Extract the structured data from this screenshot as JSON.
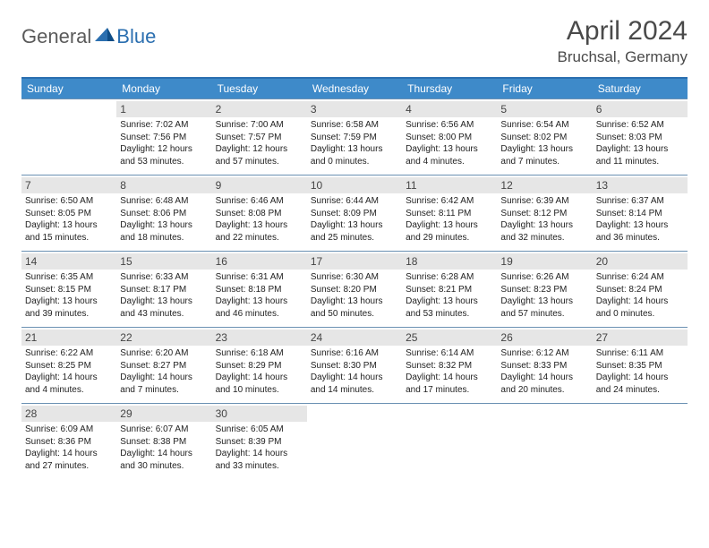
{
  "logo": {
    "text1": "General",
    "text2": "Blue"
  },
  "title": "April 2024",
  "location": "Bruchsal, Germany",
  "colors": {
    "header_bar": "#3e8ac9",
    "top_border": "#2b6fb0",
    "row_border": "#6a90b2",
    "daynum_bg": "#e6e6e6",
    "logo_gray": "#5a5a5a",
    "logo_blue": "#2b6fb0"
  },
  "weekdays": [
    "Sunday",
    "Monday",
    "Tuesday",
    "Wednesday",
    "Thursday",
    "Friday",
    "Saturday"
  ],
  "weeks": [
    [
      {
        "day": "",
        "sunrise": "",
        "sunset": "",
        "daylight1": "",
        "daylight2": ""
      },
      {
        "day": "1",
        "sunrise": "Sunrise: 7:02 AM",
        "sunset": "Sunset: 7:56 PM",
        "daylight1": "Daylight: 12 hours",
        "daylight2": "and 53 minutes."
      },
      {
        "day": "2",
        "sunrise": "Sunrise: 7:00 AM",
        "sunset": "Sunset: 7:57 PM",
        "daylight1": "Daylight: 12 hours",
        "daylight2": "and 57 minutes."
      },
      {
        "day": "3",
        "sunrise": "Sunrise: 6:58 AM",
        "sunset": "Sunset: 7:59 PM",
        "daylight1": "Daylight: 13 hours",
        "daylight2": "and 0 minutes."
      },
      {
        "day": "4",
        "sunrise": "Sunrise: 6:56 AM",
        "sunset": "Sunset: 8:00 PM",
        "daylight1": "Daylight: 13 hours",
        "daylight2": "and 4 minutes."
      },
      {
        "day": "5",
        "sunrise": "Sunrise: 6:54 AM",
        "sunset": "Sunset: 8:02 PM",
        "daylight1": "Daylight: 13 hours",
        "daylight2": "and 7 minutes."
      },
      {
        "day": "6",
        "sunrise": "Sunrise: 6:52 AM",
        "sunset": "Sunset: 8:03 PM",
        "daylight1": "Daylight: 13 hours",
        "daylight2": "and 11 minutes."
      }
    ],
    [
      {
        "day": "7",
        "sunrise": "Sunrise: 6:50 AM",
        "sunset": "Sunset: 8:05 PM",
        "daylight1": "Daylight: 13 hours",
        "daylight2": "and 15 minutes."
      },
      {
        "day": "8",
        "sunrise": "Sunrise: 6:48 AM",
        "sunset": "Sunset: 8:06 PM",
        "daylight1": "Daylight: 13 hours",
        "daylight2": "and 18 minutes."
      },
      {
        "day": "9",
        "sunrise": "Sunrise: 6:46 AM",
        "sunset": "Sunset: 8:08 PM",
        "daylight1": "Daylight: 13 hours",
        "daylight2": "and 22 minutes."
      },
      {
        "day": "10",
        "sunrise": "Sunrise: 6:44 AM",
        "sunset": "Sunset: 8:09 PM",
        "daylight1": "Daylight: 13 hours",
        "daylight2": "and 25 minutes."
      },
      {
        "day": "11",
        "sunrise": "Sunrise: 6:42 AM",
        "sunset": "Sunset: 8:11 PM",
        "daylight1": "Daylight: 13 hours",
        "daylight2": "and 29 minutes."
      },
      {
        "day": "12",
        "sunrise": "Sunrise: 6:39 AM",
        "sunset": "Sunset: 8:12 PM",
        "daylight1": "Daylight: 13 hours",
        "daylight2": "and 32 minutes."
      },
      {
        "day": "13",
        "sunrise": "Sunrise: 6:37 AM",
        "sunset": "Sunset: 8:14 PM",
        "daylight1": "Daylight: 13 hours",
        "daylight2": "and 36 minutes."
      }
    ],
    [
      {
        "day": "14",
        "sunrise": "Sunrise: 6:35 AM",
        "sunset": "Sunset: 8:15 PM",
        "daylight1": "Daylight: 13 hours",
        "daylight2": "and 39 minutes."
      },
      {
        "day": "15",
        "sunrise": "Sunrise: 6:33 AM",
        "sunset": "Sunset: 8:17 PM",
        "daylight1": "Daylight: 13 hours",
        "daylight2": "and 43 minutes."
      },
      {
        "day": "16",
        "sunrise": "Sunrise: 6:31 AM",
        "sunset": "Sunset: 8:18 PM",
        "daylight1": "Daylight: 13 hours",
        "daylight2": "and 46 minutes."
      },
      {
        "day": "17",
        "sunrise": "Sunrise: 6:30 AM",
        "sunset": "Sunset: 8:20 PM",
        "daylight1": "Daylight: 13 hours",
        "daylight2": "and 50 minutes."
      },
      {
        "day": "18",
        "sunrise": "Sunrise: 6:28 AM",
        "sunset": "Sunset: 8:21 PM",
        "daylight1": "Daylight: 13 hours",
        "daylight2": "and 53 minutes."
      },
      {
        "day": "19",
        "sunrise": "Sunrise: 6:26 AM",
        "sunset": "Sunset: 8:23 PM",
        "daylight1": "Daylight: 13 hours",
        "daylight2": "and 57 minutes."
      },
      {
        "day": "20",
        "sunrise": "Sunrise: 6:24 AM",
        "sunset": "Sunset: 8:24 PM",
        "daylight1": "Daylight: 14 hours",
        "daylight2": "and 0 minutes."
      }
    ],
    [
      {
        "day": "21",
        "sunrise": "Sunrise: 6:22 AM",
        "sunset": "Sunset: 8:25 PM",
        "daylight1": "Daylight: 14 hours",
        "daylight2": "and 4 minutes."
      },
      {
        "day": "22",
        "sunrise": "Sunrise: 6:20 AM",
        "sunset": "Sunset: 8:27 PM",
        "daylight1": "Daylight: 14 hours",
        "daylight2": "and 7 minutes."
      },
      {
        "day": "23",
        "sunrise": "Sunrise: 6:18 AM",
        "sunset": "Sunset: 8:29 PM",
        "daylight1": "Daylight: 14 hours",
        "daylight2": "and 10 minutes."
      },
      {
        "day": "24",
        "sunrise": "Sunrise: 6:16 AM",
        "sunset": "Sunset: 8:30 PM",
        "daylight1": "Daylight: 14 hours",
        "daylight2": "and 14 minutes."
      },
      {
        "day": "25",
        "sunrise": "Sunrise: 6:14 AM",
        "sunset": "Sunset: 8:32 PM",
        "daylight1": "Daylight: 14 hours",
        "daylight2": "and 17 minutes."
      },
      {
        "day": "26",
        "sunrise": "Sunrise: 6:12 AM",
        "sunset": "Sunset: 8:33 PM",
        "daylight1": "Daylight: 14 hours",
        "daylight2": "and 20 minutes."
      },
      {
        "day": "27",
        "sunrise": "Sunrise: 6:11 AM",
        "sunset": "Sunset: 8:35 PM",
        "daylight1": "Daylight: 14 hours",
        "daylight2": "and 24 minutes."
      }
    ],
    [
      {
        "day": "28",
        "sunrise": "Sunrise: 6:09 AM",
        "sunset": "Sunset: 8:36 PM",
        "daylight1": "Daylight: 14 hours",
        "daylight2": "and 27 minutes."
      },
      {
        "day": "29",
        "sunrise": "Sunrise: 6:07 AM",
        "sunset": "Sunset: 8:38 PM",
        "daylight1": "Daylight: 14 hours",
        "daylight2": "and 30 minutes."
      },
      {
        "day": "30",
        "sunrise": "Sunrise: 6:05 AM",
        "sunset": "Sunset: 8:39 PM",
        "daylight1": "Daylight: 14 hours",
        "daylight2": "and 33 minutes."
      },
      {
        "day": "",
        "sunrise": "",
        "sunset": "",
        "daylight1": "",
        "daylight2": ""
      },
      {
        "day": "",
        "sunrise": "",
        "sunset": "",
        "daylight1": "",
        "daylight2": ""
      },
      {
        "day": "",
        "sunrise": "",
        "sunset": "",
        "daylight1": "",
        "daylight2": ""
      },
      {
        "day": "",
        "sunrise": "",
        "sunset": "",
        "daylight1": "",
        "daylight2": ""
      }
    ]
  ]
}
